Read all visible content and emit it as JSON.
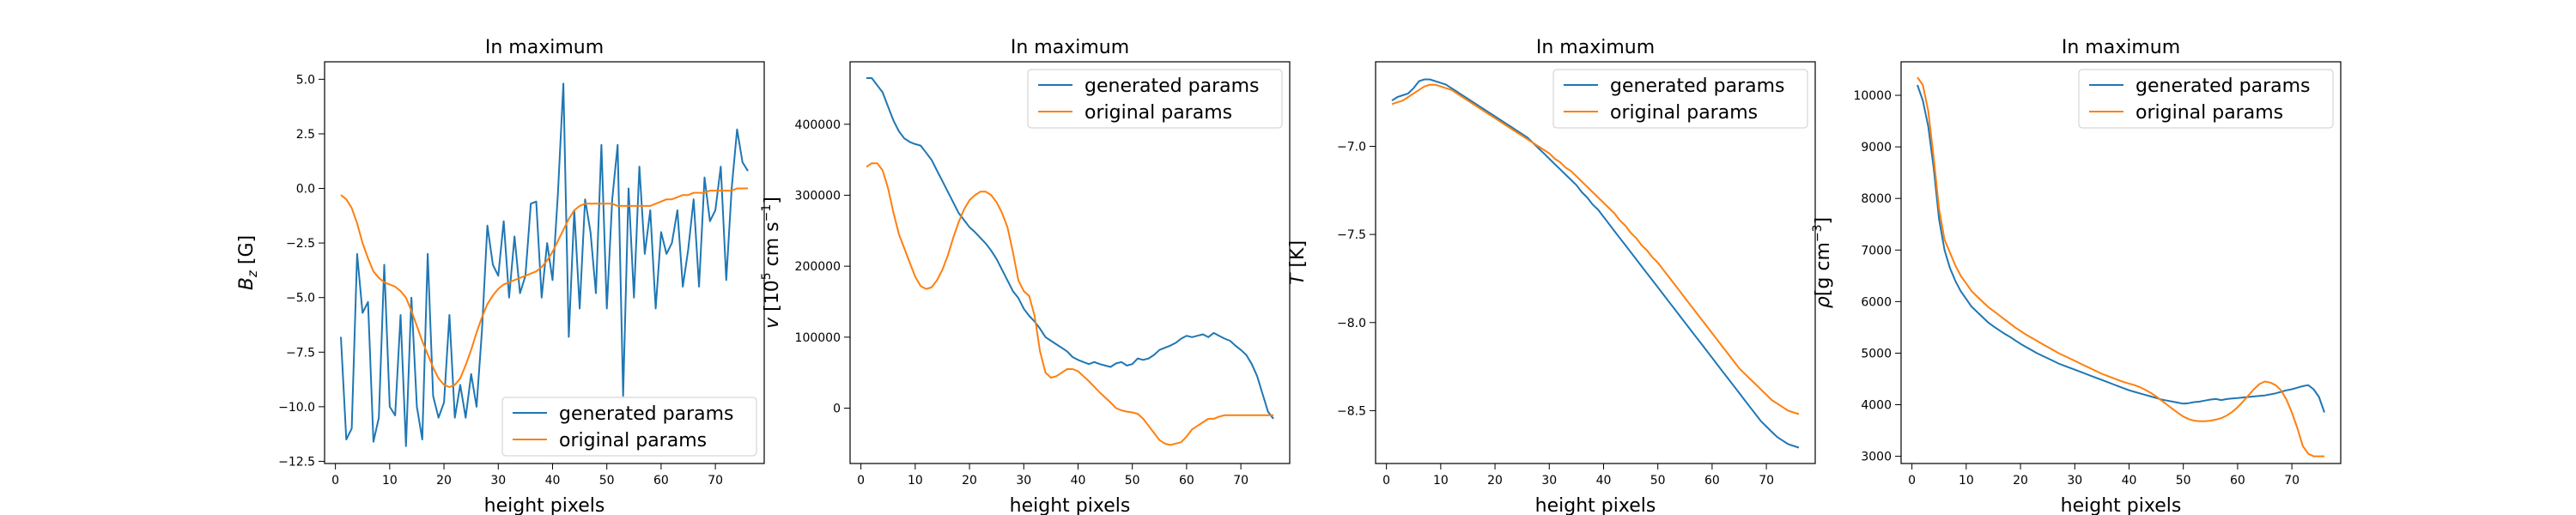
{
  "chart_data": [
    {
      "type": "line",
      "title": "In maximum",
      "xlabel": "height pixels",
      "ylabel": "B_z [G]",
      "ylabel_parts": {
        "sym": "B",
        "sub": "z",
        "unit": " [G]"
      },
      "xlim": [
        -2,
        79
      ],
      "ylim": [
        -12.6,
        5.8
      ],
      "xticks": [
        0,
        10,
        20,
        30,
        40,
        50,
        60,
        70
      ],
      "yticks": [
        -12.5,
        -10.0,
        -7.5,
        -5.0,
        -2.5,
        0.0,
        2.5,
        5.0
      ],
      "ytick_labels": [
        "−12.5",
        "−10.0",
        "−7.5",
        "−5.0",
        "−2.5",
        "0.0",
        "2.5",
        "5.0"
      ],
      "legend": "lower-right",
      "x": [
        1,
        2,
        3,
        4,
        5,
        6,
        7,
        8,
        9,
        10,
        11,
        12,
        13,
        14,
        15,
        16,
        17,
        18,
        19,
        20,
        21,
        22,
        23,
        24,
        25,
        26,
        27,
        28,
        29,
        30,
        31,
        32,
        33,
        34,
        35,
        36,
        37,
        38,
        39,
        40,
        41,
        42,
        43,
        44,
        45,
        46,
        47,
        48,
        49,
        50,
        51,
        52,
        53,
        54,
        55,
        56,
        57,
        58,
        59,
        60,
        61,
        62,
        63,
        64,
        65,
        66,
        67,
        68,
        69,
        70,
        71,
        72,
        73,
        74,
        75,
        76
      ],
      "series": [
        {
          "name": "generated params",
          "color": "#1f77b4",
          "values": [
            -6.8,
            -11.5,
            -11.0,
            -3.0,
            -5.7,
            -5.2,
            -11.6,
            -10.5,
            -3.5,
            -10.0,
            -10.4,
            -5.8,
            -11.8,
            -5.0,
            -10.0,
            -11.5,
            -3.0,
            -9.5,
            -10.5,
            -9.8,
            -5.8,
            -10.5,
            -9.0,
            -10.5,
            -8.5,
            -10.0,
            -6.5,
            -1.7,
            -3.5,
            -4.0,
            -1.5,
            -5.0,
            -2.2,
            -4.8,
            -4.0,
            -0.7,
            -0.6,
            -5.0,
            -2.5,
            -4.2,
            -0.2,
            4.8,
            -6.8,
            -1.0,
            -5.5,
            -0.5,
            -2.0,
            -4.8,
            2.0,
            -5.5,
            -0.5,
            2.0,
            -9.5,
            0.0,
            -5.0,
            1.0,
            -3.0,
            -1.0,
            -5.5,
            -2.0,
            -3.0,
            -2.5,
            -1.0,
            -4.5,
            -2.8,
            -0.5,
            -4.5,
            0.5,
            -1.5,
            -1.0,
            1.0,
            -4.2,
            0.0,
            2.7,
            1.2,
            0.8
          ]
        },
        {
          "name": "original params",
          "color": "#ff7f0e",
          "values": [
            -0.3,
            -0.5,
            -0.9,
            -1.6,
            -2.5,
            -3.2,
            -3.8,
            -4.1,
            -4.3,
            -4.4,
            -4.5,
            -4.7,
            -5.0,
            -5.6,
            -6.3,
            -7.0,
            -7.6,
            -8.2,
            -8.7,
            -9.0,
            -9.1,
            -9.0,
            -8.7,
            -8.1,
            -7.4,
            -6.6,
            -5.9,
            -5.3,
            -4.9,
            -4.6,
            -4.4,
            -4.3,
            -4.2,
            -4.1,
            -4.0,
            -3.9,
            -3.8,
            -3.6,
            -3.3,
            -2.9,
            -2.4,
            -1.9,
            -1.4,
            -1.0,
            -0.8,
            -0.7,
            -0.7,
            -0.7,
            -0.7,
            -0.7,
            -0.7,
            -0.8,
            -0.8,
            -0.8,
            -0.8,
            -0.8,
            -0.8,
            -0.8,
            -0.7,
            -0.6,
            -0.5,
            -0.5,
            -0.4,
            -0.3,
            -0.3,
            -0.2,
            -0.2,
            -0.2,
            -0.1,
            -0.1,
            -0.1,
            -0.1,
            -0.1,
            -0.0,
            -0.0,
            -0.0
          ]
        }
      ]
    },
    {
      "type": "line",
      "title": "In maximum",
      "xlabel": "height pixels",
      "ylabel": "v [10^5 cm s^-1]",
      "ylabel_parts": {
        "sym": "v",
        "unit_prefix": " [10",
        "sup1": "5",
        "unit_mid": " cm s",
        "sup2": "−1",
        "unit_end": "]"
      },
      "xlim": [
        -2,
        79
      ],
      "ylim": [
        -78000,
        488000
      ],
      "xticks": [
        0,
        10,
        20,
        30,
        40,
        50,
        60,
        70
      ],
      "yticks": [
        0,
        100000,
        200000,
        300000,
        400000
      ],
      "ytick_labels": [
        "0",
        "100000",
        "200000",
        "300000",
        "400000"
      ],
      "legend": "upper-right",
      "x": [
        1,
        2,
        3,
        4,
        5,
        6,
        7,
        8,
        9,
        10,
        11,
        12,
        13,
        14,
        15,
        16,
        17,
        18,
        19,
        20,
        21,
        22,
        23,
        24,
        25,
        26,
        27,
        28,
        29,
        30,
        31,
        32,
        33,
        34,
        35,
        36,
        37,
        38,
        39,
        40,
        41,
        42,
        43,
        44,
        45,
        46,
        47,
        48,
        49,
        50,
        51,
        52,
        53,
        54,
        55,
        56,
        57,
        58,
        59,
        60,
        61,
        62,
        63,
        64,
        65,
        66,
        67,
        68,
        69,
        70,
        71,
        72,
        73,
        74,
        75,
        76
      ],
      "series": [
        {
          "name": "generated params",
          "color": "#1f77b4",
          "values": [
            465000,
            465000,
            455000,
            445000,
            425000,
            405000,
            390000,
            380000,
            375000,
            372000,
            370000,
            360000,
            350000,
            335000,
            320000,
            305000,
            290000,
            275000,
            265000,
            255000,
            248000,
            240000,
            232000,
            222000,
            210000,
            195000,
            180000,
            165000,
            155000,
            140000,
            130000,
            122000,
            112000,
            100000,
            95000,
            90000,
            85000,
            80000,
            72000,
            68000,
            65000,
            62000,
            65000,
            62000,
            60000,
            58000,
            63000,
            65000,
            60000,
            62000,
            70000,
            68000,
            70000,
            75000,
            82000,
            85000,
            88000,
            92000,
            98000,
            102000,
            100000,
            102000,
            104000,
            100000,
            106000,
            102000,
            98000,
            95000,
            88000,
            82000,
            75000,
            62000,
            45000,
            20000,
            -5000,
            -15000
          ]
        },
        {
          "name": "original params",
          "color": "#ff7f0e",
          "values": [
            340000,
            345000,
            345000,
            335000,
            310000,
            275000,
            245000,
            225000,
            205000,
            185000,
            172000,
            168000,
            170000,
            180000,
            195000,
            215000,
            240000,
            262000,
            280000,
            293000,
            300000,
            305000,
            305000,
            300000,
            290000,
            275000,
            255000,
            220000,
            180000,
            165000,
            158000,
            130000,
            80000,
            50000,
            43000,
            45000,
            50000,
            55000,
            55000,
            52000,
            45000,
            38000,
            30000,
            22000,
            15000,
            8000,
            0,
            -3000,
            -5000,
            -6000,
            -8000,
            -15000,
            -25000,
            -35000,
            -45000,
            -50000,
            -52000,
            -50000,
            -48000,
            -40000,
            -30000,
            -25000,
            -20000,
            -15000,
            -15000,
            -12000,
            -10000,
            -10000,
            -10000,
            -10000,
            -10000,
            -10000,
            -10000,
            -10000,
            -10000,
            -10000
          ]
        }
      ]
    },
    {
      "type": "line",
      "title": "In maximum",
      "xlabel": "height pixels",
      "ylabel": "T [K]",
      "ylabel_parts": {
        "sym": "T",
        "unit": " [K]"
      },
      "xlim": [
        -2,
        79
      ],
      "ylim": [
        -8.8,
        -6.52
      ],
      "xticks": [
        0,
        10,
        20,
        30,
        40,
        50,
        60,
        70
      ],
      "yticks": [
        -8.5,
        -8.0,
        -7.5,
        -7.0
      ],
      "ytick_labels": [
        "−8.5",
        "−8.0",
        "−7.5",
        "−7.0"
      ],
      "legend": "upper-right",
      "x": [
        1,
        2,
        3,
        4,
        5,
        6,
        7,
        8,
        9,
        10,
        11,
        12,
        13,
        14,
        15,
        16,
        17,
        18,
        19,
        20,
        21,
        22,
        23,
        24,
        25,
        26,
        27,
        28,
        29,
        30,
        31,
        32,
        33,
        34,
        35,
        36,
        37,
        38,
        39,
        40,
        41,
        42,
        43,
        44,
        45,
        46,
        47,
        48,
        49,
        50,
        51,
        52,
        53,
        54,
        55,
        56,
        57,
        58,
        59,
        60,
        61,
        62,
        63,
        64,
        65,
        66,
        67,
        68,
        69,
        70,
        71,
        72,
        73,
        74,
        75,
        76
      ],
      "series": [
        {
          "name": "generated params",
          "color": "#1f77b4",
          "values": [
            -6.74,
            -6.72,
            -6.71,
            -6.7,
            -6.67,
            -6.63,
            -6.62,
            -6.62,
            -6.63,
            -6.64,
            -6.65,
            -6.67,
            -6.69,
            -6.71,
            -6.73,
            -6.75,
            -6.77,
            -6.79,
            -6.81,
            -6.83,
            -6.85,
            -6.87,
            -6.89,
            -6.91,
            -6.93,
            -6.95,
            -6.98,
            -7.01,
            -7.04,
            -7.07,
            -7.1,
            -7.13,
            -7.16,
            -7.19,
            -7.22,
            -7.26,
            -7.29,
            -7.33,
            -7.36,
            -7.4,
            -7.44,
            -7.48,
            -7.52,
            -7.56,
            -7.6,
            -7.64,
            -7.68,
            -7.72,
            -7.76,
            -7.8,
            -7.84,
            -7.88,
            -7.92,
            -7.96,
            -8.0,
            -8.04,
            -8.08,
            -8.12,
            -8.16,
            -8.2,
            -8.24,
            -8.28,
            -8.32,
            -8.36,
            -8.4,
            -8.44,
            -8.48,
            -8.52,
            -8.56,
            -8.59,
            -8.62,
            -8.65,
            -8.67,
            -8.69,
            -8.7,
            -8.71
          ]
        },
        {
          "name": "original params",
          "color": "#ff7f0e",
          "values": [
            -6.76,
            -6.75,
            -6.74,
            -6.72,
            -6.7,
            -6.68,
            -6.66,
            -6.65,
            -6.65,
            -6.66,
            -6.67,
            -6.68,
            -6.7,
            -6.72,
            -6.74,
            -6.76,
            -6.78,
            -6.8,
            -6.82,
            -6.84,
            -6.86,
            -6.88,
            -6.9,
            -6.92,
            -6.94,
            -6.96,
            -6.98,
            -7.0,
            -7.02,
            -7.04,
            -7.07,
            -7.09,
            -7.12,
            -7.14,
            -7.17,
            -7.2,
            -7.23,
            -7.26,
            -7.29,
            -7.32,
            -7.35,
            -7.38,
            -7.42,
            -7.45,
            -7.49,
            -7.52,
            -7.56,
            -7.59,
            -7.63,
            -7.66,
            -7.7,
            -7.74,
            -7.78,
            -7.82,
            -7.86,
            -7.9,
            -7.94,
            -7.98,
            -8.02,
            -8.06,
            -8.1,
            -8.14,
            -8.18,
            -8.22,
            -8.26,
            -8.29,
            -8.32,
            -8.35,
            -8.38,
            -8.41,
            -8.44,
            -8.46,
            -8.48,
            -8.5,
            -8.51,
            -8.52
          ]
        }
      ]
    },
    {
      "type": "line",
      "title": "In maximum",
      "xlabel": "height pixels",
      "ylabel": "ρ [g cm^-3]",
      "ylabel_parts": {
        "sym": "ρ",
        "unit_prefix": "[g cm",
        "sup1": "−3",
        "unit_end": "]"
      },
      "xlim": [
        -2,
        79
      ],
      "ylim": [
        2860,
        10650
      ],
      "xticks": [
        0,
        10,
        20,
        30,
        40,
        50,
        60,
        70
      ],
      "yticks": [
        3000,
        4000,
        5000,
        6000,
        7000,
        8000,
        9000,
        10000
      ],
      "ytick_labels": [
        "3000",
        "4000",
        "5000",
        "6000",
        "7000",
        "8000",
        "9000",
        "10000"
      ],
      "legend": "upper-right",
      "x": [
        1,
        2,
        3,
        4,
        5,
        6,
        7,
        8,
        9,
        10,
        11,
        12,
        13,
        14,
        15,
        16,
        17,
        18,
        19,
        20,
        21,
        22,
        23,
        24,
        25,
        26,
        27,
        28,
        29,
        30,
        31,
        32,
        33,
        34,
        35,
        36,
        37,
        38,
        39,
        40,
        41,
        42,
        43,
        44,
        45,
        46,
        47,
        48,
        49,
        50,
        51,
        52,
        53,
        54,
        55,
        56,
        57,
        58,
        59,
        60,
        61,
        62,
        63,
        64,
        65,
        66,
        67,
        68,
        69,
        70,
        71,
        72,
        73,
        74,
        75,
        76
      ],
      "series": [
        {
          "name": "generated params",
          "color": "#1f77b4",
          "values": [
            10200,
            9900,
            9400,
            8600,
            7600,
            7000,
            6650,
            6400,
            6200,
            6050,
            5900,
            5800,
            5700,
            5600,
            5520,
            5450,
            5380,
            5320,
            5250,
            5180,
            5120,
            5060,
            5000,
            4950,
            4900,
            4850,
            4800,
            4760,
            4720,
            4680,
            4640,
            4600,
            4560,
            4520,
            4480,
            4440,
            4400,
            4360,
            4320,
            4280,
            4250,
            4220,
            4190,
            4160,
            4130,
            4100,
            4080,
            4060,
            4040,
            4020,
            4030,
            4050,
            4060,
            4080,
            4100,
            4110,
            4090,
            4110,
            4120,
            4130,
            4140,
            4150,
            4160,
            4170,
            4180,
            4200,
            4220,
            4250,
            4280,
            4300,
            4330,
            4360,
            4380,
            4300,
            4150,
            3850
          ]
        },
        {
          "name": "original params",
          "color": "#ff7f0e",
          "values": [
            10350,
            10200,
            9700,
            8800,
            7800,
            7200,
            6950,
            6700,
            6500,
            6350,
            6200,
            6100,
            6000,
            5900,
            5820,
            5740,
            5660,
            5580,
            5500,
            5430,
            5360,
            5300,
            5240,
            5180,
            5120,
            5060,
            5000,
            4950,
            4900,
            4850,
            4800,
            4750,
            4700,
            4650,
            4600,
            4560,
            4520,
            4480,
            4440,
            4410,
            4380,
            4340,
            4290,
            4230,
            4160,
            4080,
            4000,
            3920,
            3840,
            3770,
            3720,
            3690,
            3680,
            3680,
            3690,
            3710,
            3740,
            3790,
            3860,
            3950,
            4060,
            4180,
            4300,
            4400,
            4450,
            4430,
            4380,
            4280,
            4100,
            3850,
            3550,
            3200,
            3050,
            3000,
            3000,
            3000
          ]
        }
      ]
    }
  ]
}
